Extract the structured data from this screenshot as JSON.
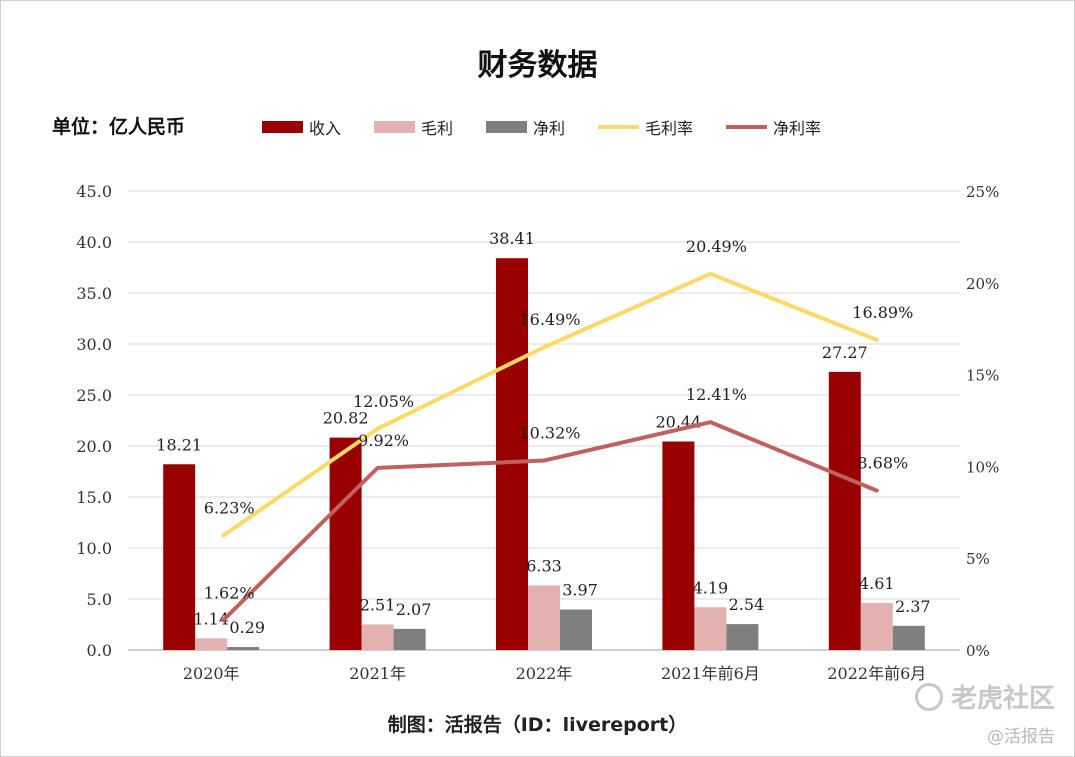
{
  "title": "财务数据",
  "unit_label": "单位：亿人民币",
  "credit": "制图：活报告（ID：livereport）",
  "watermark": {
    "brand": "老虎社区",
    "handle": "@活报告"
  },
  "legend": [
    {
      "label": "收入",
      "kind": "bar",
      "color": "#990000"
    },
    {
      "label": "毛利",
      "kind": "bar",
      "color": "#e2b1b0"
    },
    {
      "label": "净利",
      "kind": "bar",
      "color": "#7f7f7f"
    },
    {
      "label": "毛利率",
      "kind": "line",
      "color": "#ffd966"
    },
    {
      "label": "净利率",
      "kind": "line",
      "color": "#c0605f"
    }
  ],
  "chart_data": {
    "type": "bar",
    "categories": [
      "2020年",
      "2021年",
      "2022年",
      "2021年前6月",
      "2022年前6月"
    ],
    "series": [
      {
        "name": "收入",
        "type": "bar",
        "axis": "left",
        "color": "#990000",
        "values": [
          18.21,
          20.82,
          38.41,
          20.44,
          27.27
        ],
        "labels": [
          "18.21",
          "20.82",
          "38.41",
          "20.44",
          "27.27"
        ]
      },
      {
        "name": "毛利",
        "type": "bar",
        "axis": "left",
        "color": "#e2b1b0",
        "values": [
          1.14,
          2.51,
          6.33,
          4.19,
          4.61
        ],
        "labels": [
          "1.14",
          "2.51",
          "6.33",
          "4.19",
          "4.61"
        ]
      },
      {
        "name": "净利",
        "type": "bar",
        "axis": "left",
        "color": "#7f7f7f",
        "values": [
          0.29,
          2.07,
          3.97,
          2.54,
          2.37
        ],
        "labels": [
          "0.29",
          "2.07",
          "3.97",
          "2.54",
          "2.37"
        ]
      },
      {
        "name": "毛利率",
        "type": "line",
        "axis": "right",
        "color": "#ffd966",
        "values": [
          6.23,
          12.05,
          16.49,
          20.49,
          16.89
        ],
        "labels": [
          "6.23%",
          "12.05%",
          "16.49%",
          "20.49%",
          "16.89%"
        ]
      },
      {
        "name": "净利率",
        "type": "line",
        "axis": "right",
        "color": "#c0605f",
        "values": [
          1.62,
          9.92,
          10.32,
          12.41,
          8.68
        ],
        "labels": [
          "1.62%",
          "9.92%",
          "10.32%",
          "12.41%",
          "8.68%"
        ]
      }
    ],
    "y_left": {
      "min": 0,
      "max": 45,
      "ticks": [
        "0.0",
        "5.0",
        "10.0",
        "15.0",
        "20.0",
        "25.0",
        "30.0",
        "35.0",
        "40.0",
        "45.0"
      ]
    },
    "y_right": {
      "min": 0,
      "max": 25,
      "ticks": [
        "0%",
        "5%",
        "10%",
        "15%",
        "20%",
        "25%"
      ]
    },
    "grid": true,
    "legend_position": "top"
  }
}
